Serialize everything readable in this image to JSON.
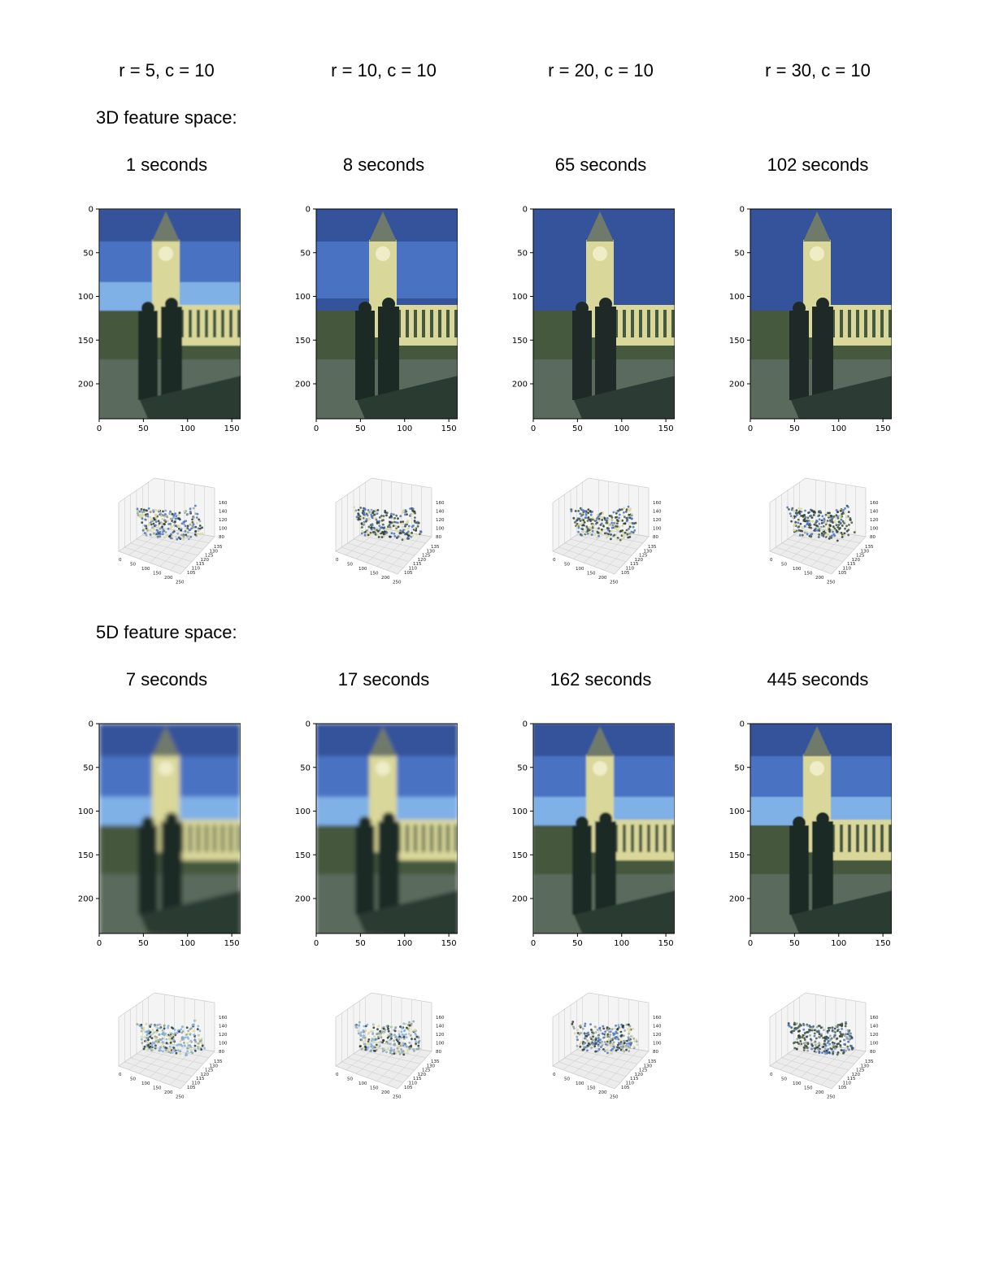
{
  "column_headers": [
    "r = 5, c = 10",
    "r = 10, c = 10",
    "r = 20, c = 10",
    "r = 30, c = 10"
  ],
  "sections": [
    {
      "title": "3D feature space:",
      "times": [
        "1 seconds",
        "8 seconds",
        "65 seconds",
        "102 seconds"
      ]
    },
    {
      "title": "5D feature space:",
      "times": [
        "7 seconds",
        "17 seconds",
        "162 seconds",
        "445 seconds"
      ]
    }
  ],
  "image_plot": {
    "y_ticks": [
      "0",
      "50",
      "100",
      "150",
      "200"
    ],
    "x_ticks": [
      "0",
      "50",
      "100",
      "150"
    ]
  },
  "scatter_plot": {
    "z_ticks": [
      "160",
      "140",
      "120",
      "100",
      "80"
    ],
    "y_ticks": [
      "135",
      "130",
      "125",
      "120",
      "115",
      "110",
      "105"
    ],
    "x_ticks": [
      "0",
      "50",
      "100",
      "150",
      "200",
      "250"
    ]
  },
  "palette": {
    "sky_dark": "#34539a",
    "sky_mid": "#4a72c2",
    "sky_light": "#7fb0e6",
    "tower": "#d9d79a",
    "grass": "#44593e",
    "shadow": "#2c3b33",
    "ground": "#5a6a5c",
    "figure": "#1f2a28"
  }
}
